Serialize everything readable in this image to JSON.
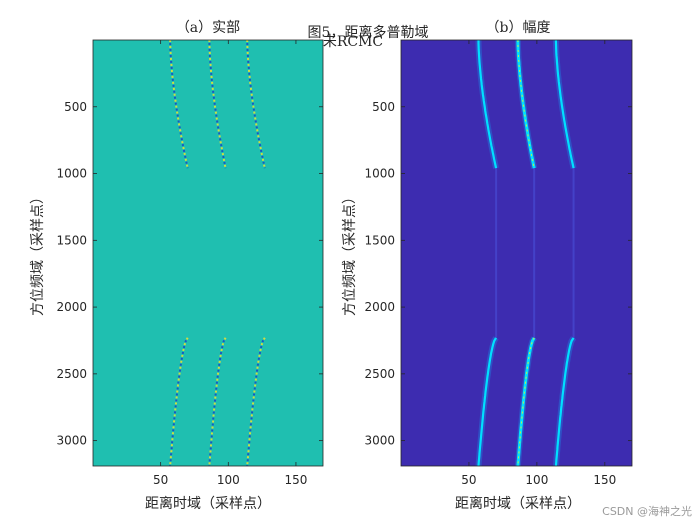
{
  "figure_title_line1": "图5，距离多普勒域",
  "figure_title_line2": "未RCMC",
  "watermark": "CSDN @海神之光",
  "colors": {
    "real_background": "#1fbfb0",
    "magnitude_background": "#3d2cb0",
    "trace_bright": "#00e0ff",
    "trace_peak": "#f0f020",
    "axis": "#262626"
  },
  "chart_data": [
    {
      "type": "heatmap",
      "title": "（a）实部",
      "xlabel": "距离时域（采样点）",
      "ylabel": "方位频域（采样点）",
      "xlim": [
        0,
        170
      ],
      "ylim": [
        3190,
        0
      ],
      "xticks": [
        50,
        100,
        150
      ],
      "yticks": [
        500,
        1000,
        1500,
        2000,
        2500,
        3000
      ],
      "colormap": "parula",
      "targets": [
        {
          "x_top": 57,
          "x_mid": 70,
          "x_bottom": 57
        },
        {
          "x_top": 86,
          "x_mid": 98,
          "x_bottom": 86
        },
        {
          "x_top": 114,
          "x_mid": 127,
          "x_bottom": 114
        }
      ],
      "bands": [
        [
          0,
          960
        ],
        [
          2230,
          3190
        ]
      ]
    },
    {
      "type": "heatmap",
      "title": "（b）幅度",
      "xlabel": "距离时域（采样点）",
      "ylabel": "方位频域（采样点）",
      "xlim": [
        0,
        170
      ],
      "ylim": [
        3190,
        0
      ],
      "xticks": [
        50,
        100,
        150
      ],
      "yticks": [
        500,
        1000,
        1500,
        2000,
        2500,
        3000
      ],
      "colormap": "parula",
      "targets": [
        {
          "x_top": 57,
          "x_mid": 70,
          "x_bottom": 57
        },
        {
          "x_top": 86,
          "x_mid": 98,
          "x_bottom": 86
        },
        {
          "x_top": 114,
          "x_mid": 127,
          "x_bottom": 114
        }
      ],
      "bands": [
        [
          0,
          960
        ],
        [
          2230,
          3190
        ]
      ]
    }
  ]
}
